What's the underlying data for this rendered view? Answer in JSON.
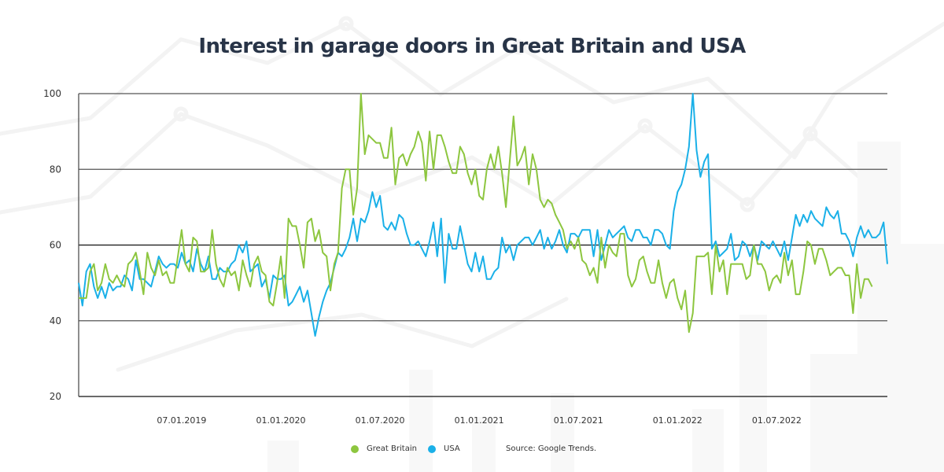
{
  "chart_data": {
    "type": "line",
    "title": "Interest in garage doors in Great Britain and USA",
    "xlabel": "",
    "ylabel": "",
    "ylim": [
      20,
      100
    ],
    "yticks": [
      20,
      40,
      60,
      80,
      100
    ],
    "grid": true,
    "x_tick_labels": [
      "07.01.2019",
      "01.01.2020",
      "01.07.2020",
      "01.01.2021",
      "01.07.2021",
      "01.01.2022",
      "01.07.2022"
    ],
    "x_tick_week_index": [
      27,
      53,
      79,
      105,
      131,
      157,
      183
    ],
    "legend_placement": "bottom-center",
    "source": "Source: Google Trends.",
    "series": [
      {
        "name": "Great Britain",
        "color": "#8dc63f",
        "values": [
          46,
          46,
          46,
          53,
          55,
          48,
          50,
          55,
          51,
          50,
          52,
          50,
          49,
          55,
          56,
          58,
          53,
          47,
          58,
          54,
          52,
          56,
          52,
          53,
          50,
          50,
          57,
          64,
          55,
          53,
          62,
          61,
          53,
          53,
          54,
          64,
          55,
          51,
          49,
          54,
          52,
          53,
          48,
          56,
          52,
          49,
          55,
          57,
          53,
          52,
          45,
          44,
          50,
          57,
          46,
          67,
          65,
          65,
          60,
          54,
          66,
          67,
          61,
          64,
          58,
          57,
          48,
          55,
          58,
          75,
          80,
          80,
          68,
          75,
          100,
          84,
          89,
          88,
          87,
          87,
          83,
          83,
          91,
          76,
          83,
          84,
          81,
          84,
          86,
          90,
          87,
          77,
          90,
          80,
          89,
          89,
          86,
          82,
          79,
          79,
          86,
          84,
          79,
          76,
          80,
          73,
          72,
          80,
          84,
          80,
          86,
          79,
          70,
          82,
          94,
          81,
          83,
          86,
          76,
          84,
          80,
          72,
          70,
          72,
          71,
          68,
          66,
          64,
          59,
          61,
          59,
          62,
          56,
          55,
          52,
          54,
          50,
          62,
          54,
          60,
          58,
          57,
          63,
          63,
          52,
          49,
          51,
          56,
          57,
          53,
          50,
          50,
          56,
          50,
          46,
          50,
          51,
          46,
          43,
          48,
          37,
          42,
          57,
          57,
          57,
          58,
          47,
          60,
          53,
          56,
          47,
          55,
          55,
          55,
          55,
          51,
          52,
          60,
          55,
          55,
          53,
          48,
          51,
          52,
          50,
          58,
          52,
          56,
          47,
          47,
          53,
          61,
          60,
          55,
          59,
          59,
          56,
          52,
          53,
          54,
          54,
          52,
          52,
          42,
          55,
          46,
          51,
          51,
          49
        ],
        "peak": 100
      },
      {
        "name": "USA",
        "color": "#1ab0e8",
        "values": [
          50,
          44,
          53,
          55,
          49,
          46,
          49,
          46,
          50,
          48,
          49,
          49,
          52,
          51,
          48,
          56,
          51,
          51,
          50,
          49,
          53,
          57,
          55,
          54,
          55,
          55,
          54,
          58,
          55,
          56,
          53,
          59,
          55,
          53,
          57,
          51,
          51,
          54,
          53,
          53,
          55,
          56,
          60,
          58,
          61,
          53,
          54,
          55,
          49,
          51,
          46,
          52,
          51,
          51,
          52,
          44,
          45,
          47,
          49,
          45,
          48,
          42,
          36,
          41,
          45,
          48,
          50,
          54,
          58,
          57,
          59,
          62,
          67,
          61,
          67,
          66,
          69,
          74,
          70,
          73,
          65,
          64,
          66,
          64,
          68,
          67,
          63,
          60,
          60,
          61,
          59,
          57,
          61,
          66,
          57,
          67,
          50,
          63,
          59,
          59,
          65,
          60,
          55,
          53,
          58,
          53,
          57,
          51,
          51,
          53,
          54,
          62,
          58,
          60,
          56,
          60,
          61,
          62,
          62,
          60,
          62,
          64,
          59,
          62,
          59,
          61,
          64,
          60,
          58,
          63,
          63,
          62,
          64,
          64,
          64,
          57,
          64,
          56,
          60,
          64,
          62,
          63,
          64,
          65,
          62,
          61,
          64,
          64,
          62,
          62,
          60,
          64,
          64,
          63,
          60,
          59,
          69,
          74,
          76,
          80,
          86,
          100,
          85,
          78,
          82,
          84,
          59,
          61,
          57,
          58,
          59,
          63,
          56,
          57,
          61,
          60,
          57,
          60,
          56,
          61,
          60,
          59,
          61,
          59,
          57,
          61,
          56,
          62,
          68,
          65,
          68,
          66,
          69,
          67,
          66,
          65,
          70,
          68,
          67,
          69,
          63,
          63,
          61,
          57,
          62,
          65,
          62,
          64,
          62,
          62,
          63,
          66,
          55
        ],
        "peak": 100
      }
    ]
  },
  "legend": {
    "items": [
      {
        "label": "Great Britain",
        "color": "#8dc63f"
      },
      {
        "label": "USA",
        "color": "#1ab0e8"
      }
    ],
    "source": "Source: Google Trends."
  }
}
